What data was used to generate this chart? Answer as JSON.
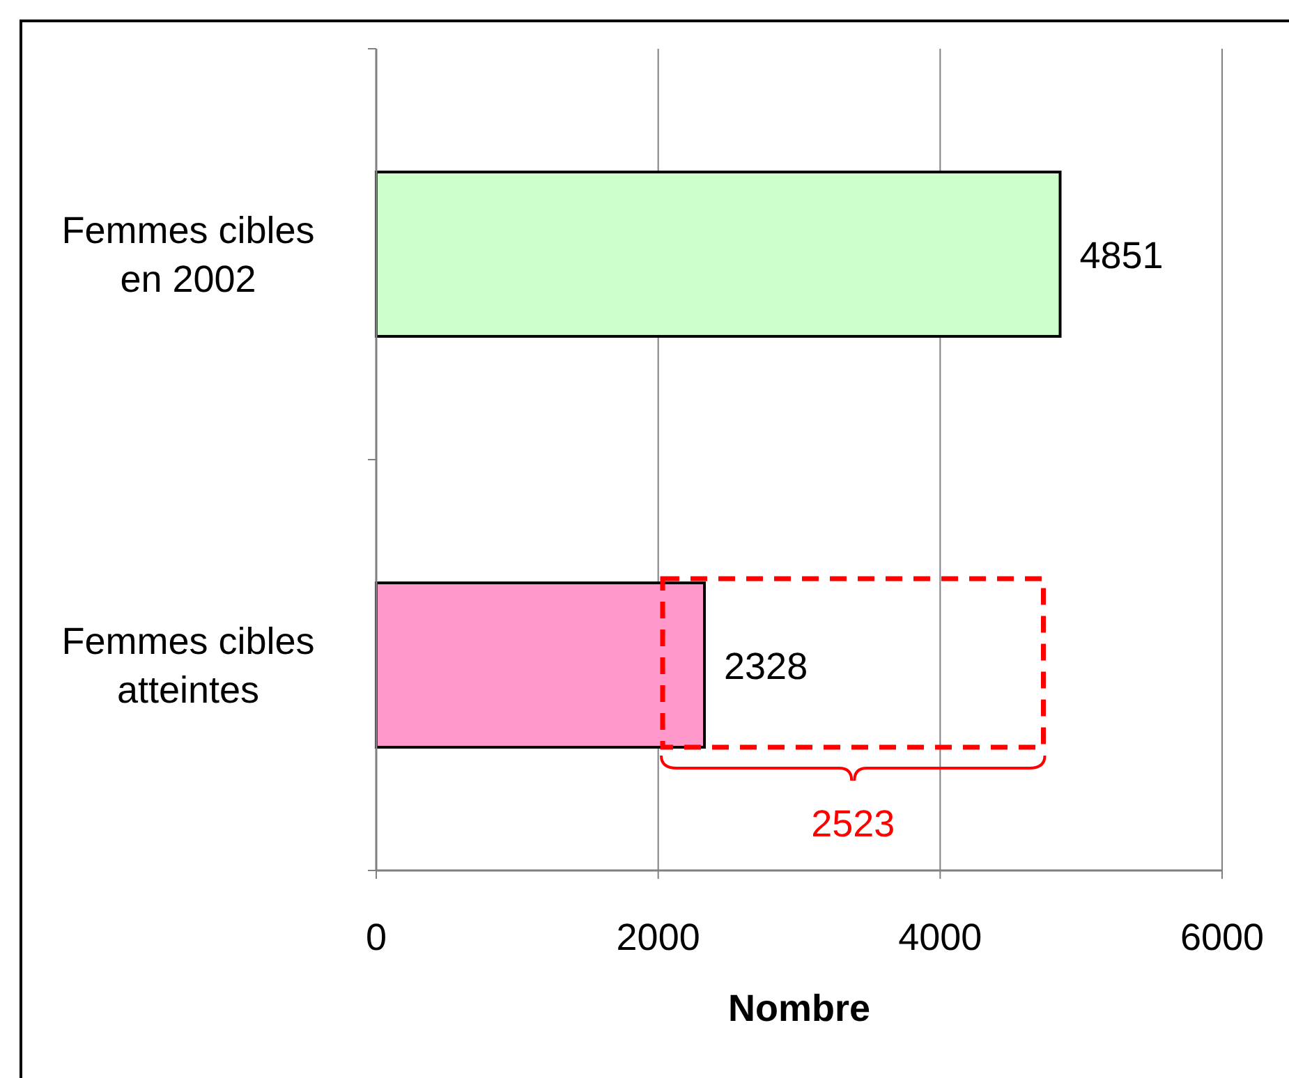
{
  "chart_data": {
    "type": "bar",
    "orientation": "horizontal",
    "xlabel": "Nombre",
    "categories": [
      "Femmes cibles\nen 2002",
      "Femmes cibles\natteintes"
    ],
    "values": [
      4851,
      2328
    ],
    "colors": [
      "#ccffcc",
      "#ff99cc"
    ],
    "xlim": [
      0,
      6000
    ],
    "xticks": [
      0,
      2000,
      4000,
      6000
    ],
    "grid": "x",
    "data_labels": true,
    "annotations": [
      "2523"
    ]
  }
}
